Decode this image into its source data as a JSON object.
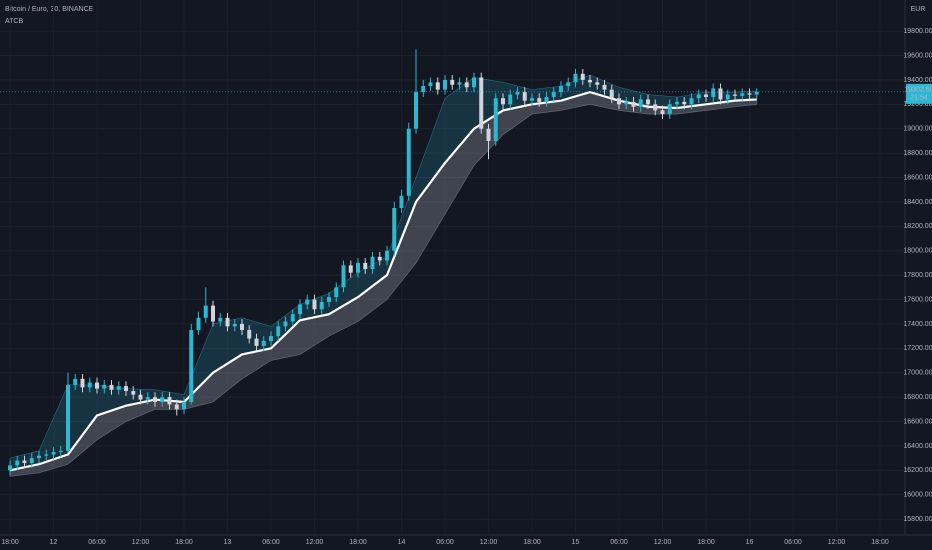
{
  "chart_data": {
    "type": "candlestick",
    "title": "Bitcoin / Euro, 30, BINANCE",
    "y_axis_label": "EUR",
    "countdown": "21:54",
    "last_price": {
      "value": 19302.6,
      "label": "19302.60"
    },
    "up_color": "#2bb8d3",
    "down_color": "#d1d4dc",
    "x": [
      0,
      1,
      2,
      3,
      4,
      5,
      6,
      7,
      8,
      9,
      10,
      11,
      12,
      13,
      14,
      15,
      16,
      17,
      18,
      19,
      20,
      21,
      22,
      23,
      24,
      25,
      26,
      27,
      28,
      29,
      30,
      31,
      32,
      33,
      34,
      35,
      36,
      37,
      38,
      39,
      40,
      41,
      42,
      43,
      44,
      45,
      46,
      47,
      48,
      49,
      50,
      51,
      52,
      53,
      54,
      55,
      56,
      57,
      58,
      59,
      60,
      61,
      62,
      63,
      64,
      65,
      66,
      67,
      68,
      69,
      70,
      71,
      72,
      73,
      74,
      75,
      76,
      77,
      78,
      79,
      80,
      81,
      82,
      83,
      84,
      85,
      86,
      87,
      88,
      89,
      90,
      91,
      92,
      93,
      94,
      95,
      96,
      97,
      98,
      99,
      100,
      101,
      102,
      103
    ],
    "open": [
      16200,
      16240,
      16280,
      16260,
      16300,
      16320,
      16330,
      16350,
      16360,
      16900,
      16950,
      16880,
      16920,
      16870,
      16900,
      16860,
      16890,
      16850,
      16820,
      16780,
      16800,
      16760,
      16800,
      16740,
      16700,
      16760,
      17350,
      17450,
      17550,
      17420,
      17450,
      17380,
      17400,
      17350,
      17280,
      17220,
      17260,
      17300,
      17380,
      17420,
      17480,
      17560,
      17600,
      17520,
      17580,
      17620,
      17700,
      17880,
      17820,
      17900,
      17850,
      17950,
      17920,
      18000,
      18350,
      18450,
      19000,
      19300,
      19350,
      19380,
      19320,
      19400,
      19360,
      19380,
      19340,
      19420,
      19000,
      18900,
      19250,
      19200,
      19280,
      19300,
      19230,
      19250,
      19220,
      19260,
      19300,
      19350,
      19380,
      19450,
      19400,
      19380,
      19360,
      19320,
      19250,
      19200,
      19220,
      19180,
      19240,
      19200,
      19150,
      19120,
      19200,
      19220,
      19200,
      19250,
      19280,
      19260,
      19330,
      19240,
      19280,
      19270,
      19290,
      19280
    ],
    "high": [
      16280,
      16320,
      16320,
      16340,
      16360,
      16370,
      16390,
      16400,
      17000,
      16990,
      16990,
      16960,
      16960,
      16940,
      16940,
      16930,
      16930,
      16890,
      16860,
      16840,
      16840,
      16840,
      16840,
      16780,
      16800,
      17400,
      17500,
      17700,
      17590,
      17490,
      17490,
      17440,
      17440,
      17390,
      17320,
      17300,
      17340,
      17420,
      17460,
      17520,
      17600,
      17640,
      17640,
      17620,
      17660,
      17740,
      17920,
      17920,
      17940,
      17940,
      17990,
      17990,
      18040,
      18400,
      18500,
      19050,
      19650,
      19400,
      19420,
      19420,
      19440,
      19440,
      19420,
      19420,
      19460,
      19460,
      19040,
      19290,
      19290,
      19320,
      19340,
      19340,
      19290,
      19290,
      19300,
      19340,
      19390,
      19420,
      19490,
      19490,
      19440,
      19420,
      19400,
      19360,
      19290,
      19260,
      19260,
      19280,
      19280,
      19240,
      19190,
      19240,
      19260,
      19260,
      19290,
      19320,
      19320,
      19370,
      19370,
      19320,
      19320,
      19330,
      19330,
      19330
    ],
    "low": [
      16160,
      16200,
      16220,
      16220,
      16260,
      16280,
      16290,
      16310,
      16340,
      16860,
      16840,
      16840,
      16830,
      16830,
      16820,
      16820,
      16810,
      16780,
      16740,
      16740,
      16720,
      16720,
      16700,
      16650,
      16660,
      16740,
      17310,
      17410,
      17380,
      17380,
      17340,
      17340,
      17310,
      17240,
      17180,
      17180,
      17220,
      17260,
      17340,
      17380,
      17440,
      17520,
      17480,
      17480,
      17540,
      17580,
      17660,
      17780,
      17780,
      17810,
      17810,
      17880,
      17880,
      17960,
      18310,
      18410,
      18960,
      19260,
      19310,
      19280,
      19280,
      19320,
      19320,
      19300,
      19300,
      18960,
      18750,
      18860,
      19160,
      19160,
      19240,
      19190,
      19190,
      19180,
      19180,
      19220,
      19260,
      19310,
      19340,
      19360,
      19340,
      19320,
      19280,
      19210,
      19160,
      19160,
      19140,
      19140,
      19160,
      19110,
      19080,
      19080,
      19160,
      19160,
      19160,
      19210,
      19220,
      19220,
      19200,
      19200,
      19230,
      19230,
      19240,
      19250
    ],
    "close": [
      16240,
      16280,
      16260,
      16300,
      16320,
      16330,
      16350,
      16360,
      16900,
      16950,
      16880,
      16920,
      16870,
      16900,
      16860,
      16890,
      16850,
      16820,
      16780,
      16800,
      16760,
      16800,
      16740,
      16700,
      16760,
      17350,
      17450,
      17550,
      17420,
      17450,
      17380,
      17400,
      17350,
      17280,
      17220,
      17260,
      17300,
      17380,
      17420,
      17480,
      17560,
      17600,
      17520,
      17580,
      17620,
      17700,
      17880,
      17820,
      17900,
      17850,
      17950,
      17920,
      18000,
      18350,
      18450,
      19000,
      19300,
      19350,
      19380,
      19320,
      19400,
      19360,
      19380,
      19340,
      19420,
      19000,
      18900,
      19250,
      19200,
      19280,
      19300,
      19230,
      19250,
      19220,
      19260,
      19300,
      19350,
      19380,
      19450,
      19400,
      19380,
      19360,
      19320,
      19250,
      19200,
      19220,
      19180,
      19240,
      19200,
      19150,
      19120,
      19200,
      19220,
      19200,
      19250,
      19280,
      19260,
      19330,
      19240,
      19280,
      19270,
      19290,
      19280,
      19302.6
    ],
    "indicator": {
      "name": "ATCB",
      "mid_color": "#ffffff",
      "upper_fill": "#2bb8d3",
      "lower_fill": "#9598a1",
      "x": [
        0,
        4,
        8,
        12,
        16,
        20,
        24,
        28,
        32,
        36,
        40,
        44,
        48,
        52,
        56,
        60,
        64,
        68,
        72,
        76,
        80,
        84,
        88,
        92,
        96,
        100,
        103
      ],
      "upper": [
        16300,
        16360,
        16900,
        16900,
        16870,
        16860,
        16820,
        17400,
        17450,
        17380,
        17560,
        17650,
        17820,
        17950,
        18600,
        19250,
        19420,
        19380,
        19320,
        19350,
        19440,
        19340,
        19280,
        19260,
        19300,
        19300,
        19310
      ],
      "mid": [
        16200,
        16250,
        16330,
        16650,
        16730,
        16780,
        16760,
        17000,
        17150,
        17200,
        17430,
        17480,
        17620,
        17800,
        18400,
        18720,
        19000,
        19150,
        19200,
        19230,
        19300,
        19230,
        19180,
        19170,
        19200,
        19230,
        19240
      ],
      "lower": [
        16150,
        16180,
        16250,
        16450,
        16600,
        16700,
        16700,
        16760,
        16950,
        17100,
        17150,
        17300,
        17420,
        17600,
        17900,
        18300,
        18700,
        18950,
        19120,
        19150,
        19200,
        19150,
        19120,
        19120,
        19150,
        19180,
        19200
      ]
    },
    "xlim": [
      -1.38,
      122.76
    ],
    "xticks": [
      {
        "value": 0,
        "label": "18:00"
      },
      {
        "value": 6,
        "label": "12"
      },
      {
        "value": 12,
        "label": "06:00"
      },
      {
        "value": 18,
        "label": "12:00"
      },
      {
        "value": 24,
        "label": "18:00"
      },
      {
        "value": 30,
        "label": "13"
      },
      {
        "value": 36,
        "label": "06:00"
      },
      {
        "value": 42,
        "label": "12:00"
      },
      {
        "value": 48,
        "label": "18:00"
      },
      {
        "value": 54,
        "label": "14"
      },
      {
        "value": 60,
        "label": "06:00"
      },
      {
        "value": 66,
        "label": "12:00"
      },
      {
        "value": 72,
        "label": "18:00"
      },
      {
        "value": 78,
        "label": "15"
      },
      {
        "value": 84,
        "label": "06:00"
      },
      {
        "value": 90,
        "label": "12:00"
      },
      {
        "value": 96,
        "label": "18:00"
      },
      {
        "value": 102,
        "label": "16"
      },
      {
        "value": 108,
        "label": "06:00"
      },
      {
        "value": 114,
        "label": "12:00"
      },
      {
        "value": 120,
        "label": "18:00"
      }
    ],
    "ylim": [
      15670,
      20055
    ],
    "yticks": [
      {
        "value": 15800,
        "label": "15800.00"
      },
      {
        "value": 16000,
        "label": "16000.00"
      },
      {
        "value": 16200,
        "label": "16200.00"
      },
      {
        "value": 16400,
        "label": "16400.00"
      },
      {
        "value": 16600,
        "label": "16600.00"
      },
      {
        "value": 16800,
        "label": "16800.00"
      },
      {
        "value": 17000,
        "label": "17000.00"
      },
      {
        "value": 17200,
        "label": "17200.00"
      },
      {
        "value": 17400,
        "label": "17400.00"
      },
      {
        "value": 17600,
        "label": "17600.00"
      },
      {
        "value": 17800,
        "label": "17800.00"
      },
      {
        "value": 18000,
        "label": "18000.00"
      },
      {
        "value": 18200,
        "label": "18200.00"
      },
      {
        "value": 18400,
        "label": "18400.00"
      },
      {
        "value": 18600,
        "label": "18600.00"
      },
      {
        "value": 18800,
        "label": "18800.00"
      },
      {
        "value": 19000,
        "label": "19000.00"
      },
      {
        "value": 19200,
        "label": "19200.00"
      },
      {
        "value": 19400,
        "label": "19400.00"
      },
      {
        "value": 19600,
        "label": "19600.00"
      },
      {
        "value": 19800,
        "label": "19800.00"
      }
    ],
    "grid": true
  }
}
